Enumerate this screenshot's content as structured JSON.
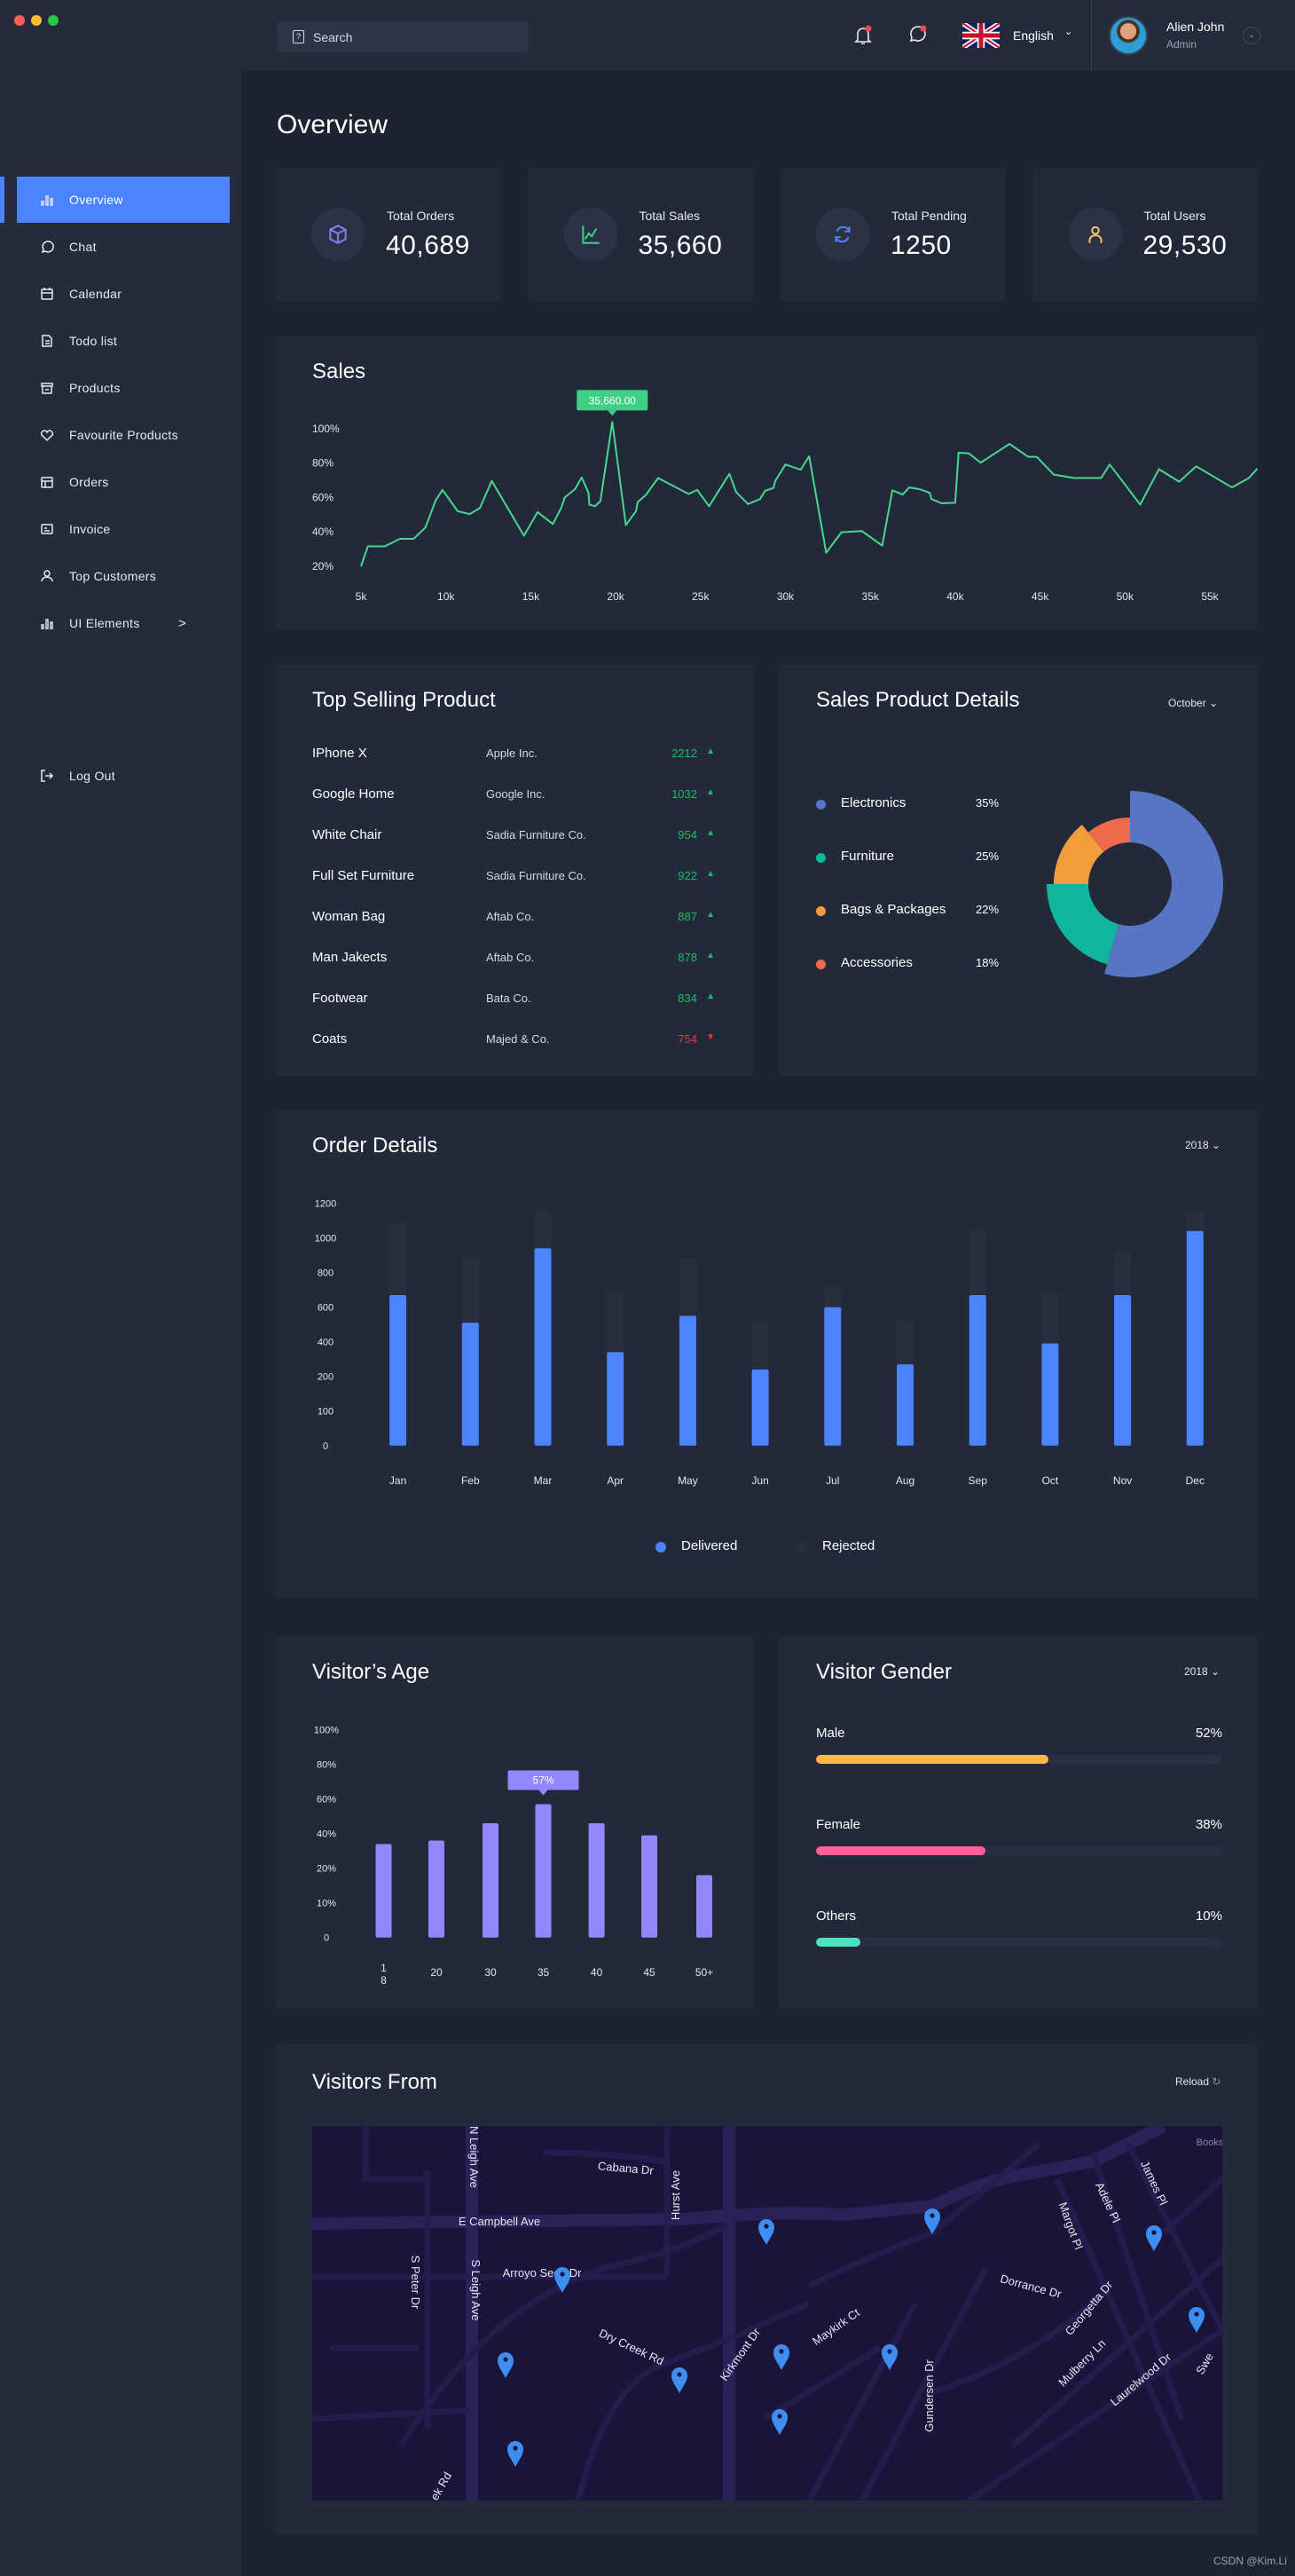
{
  "window_controls": {
    "colors": [
      "#ff5f57",
      "#febc2e",
      "#28c840"
    ]
  },
  "topbar": {
    "search_placeholder": "Search",
    "language": "English",
    "user": {
      "name": "Alien John",
      "role": "Admin"
    },
    "icons": [
      "bell-icon",
      "chat-icon",
      "uk-flag-icon",
      "chevron-down-icon"
    ]
  },
  "sidebar": {
    "items": [
      {
        "label": "Overview",
        "icon": "bar-chart",
        "active": true
      },
      {
        "label": "Chat",
        "icon": "chat"
      },
      {
        "label": "Calendar",
        "icon": "calendar"
      },
      {
        "label": "Todo list",
        "icon": "document"
      },
      {
        "label": "Products",
        "icon": "store"
      },
      {
        "label": "Favourite Products",
        "icon": "heart"
      },
      {
        "label": "Orders",
        "icon": "layout"
      },
      {
        "label": "Invoice",
        "icon": "invoice"
      },
      {
        "label": "Top Customers",
        "icon": "user"
      },
      {
        "label": "UI Elements",
        "icon": "bar-chart",
        "has_submenu": true
      }
    ],
    "logout": "Log Out",
    "submenu_chevron": ">"
  },
  "page_title": "Overview",
  "stats": [
    {
      "label": "Total Orders",
      "value": "40,689",
      "icon": "box",
      "color": "#8b7cf6"
    },
    {
      "label": "Total Sales",
      "value": "35,660",
      "icon": "trend",
      "color": "#3fd08f"
    },
    {
      "label": "Total Pending",
      "value": "1250",
      "icon": "refresh",
      "color": "#4c84ff"
    },
    {
      "label": "Total Users",
      "value": "29,530",
      "icon": "user",
      "color": "#f7c56b"
    }
  ],
  "sales": {
    "title": "Sales",
    "tooltip": "35,660.00"
  },
  "top_selling": {
    "title": "Top Selling Product",
    "rows": [
      {
        "name": "IPhone X",
        "company": "Apple Inc.",
        "value": "2212",
        "trend": "up"
      },
      {
        "name": "Google Home",
        "company": "Google Inc.",
        "value": "1032",
        "trend": "up"
      },
      {
        "name": "White Chair",
        "company": "Sadia Furniture Co.",
        "value": "954",
        "trend": "up"
      },
      {
        "name": "Full Set Furniture",
        "company": "Sadia Furniture Co.",
        "value": "922",
        "trend": "up"
      },
      {
        "name": "Woman Bag",
        "company": "Aftab Co.",
        "value": "887",
        "trend": "up"
      },
      {
        "name": "Man Jakects",
        "company": "Aftab Co.",
        "value": "878",
        "trend": "up"
      },
      {
        "name": "Footwear",
        "company": "Bata Co.",
        "value": "834",
        "trend": "up"
      },
      {
        "name": "Coats",
        "company": "Majed & Co.",
        "value": "754",
        "trend": "down"
      }
    ],
    "up_color": "#21b869",
    "down_color": "#e5354f"
  },
  "sales_product": {
    "title": "Sales Product Details",
    "filter": "October"
  },
  "order_details": {
    "title": "Order Details",
    "filter": "2018"
  },
  "visitor_age": {
    "title": "Visitor’s Age",
    "tooltip": "57%"
  },
  "visitor_gender": {
    "title": "Visitor Gender",
    "filter": "2018",
    "rows": [
      {
        "label": "Male",
        "value": "52%",
        "percent": 52,
        "color": "#ffb648"
      },
      {
        "label": "Female",
        "value": "38%",
        "percent": 38,
        "color": "#ff5e9a"
      },
      {
        "label": "Others",
        "value": "10%",
        "percent": 10,
        "color": "#4de1c1"
      }
    ]
  },
  "visitors_from": {
    "title": "Visitors From",
    "reload": "Reload",
    "map_labels": [
      "N Leigh Ave",
      "Cabana Dr",
      "Hurst Ave",
      "E Campbell Ave",
      "S Peter Dr",
      "S Leigh Ave",
      "Arroyo Seco Dr",
      "Dry Creek Rd",
      "Kirkmont Dr",
      "Maykirk Ct",
      "Gundersen Dr",
      "Dorrance Dr",
      "Margot Pl",
      "Adele Pl",
      "James Pl",
      "Georgetta Dr",
      "Mulberry Ln",
      "Laurelwood Dr",
      "Books",
      "ek Rd",
      "Swe"
    ],
    "pin_color": "#3d8ef0",
    "pin_count": 11
  },
  "watermark": "CSDN @Kim.Li",
  "chart_data": [
    {
      "type": "line",
      "title": "Sales",
      "x_unit": "k",
      "xlim": [
        5,
        57.8
      ],
      "ylim": [
        20,
        100
      ],
      "x_ticks": [
        "5k",
        "10k",
        "15k",
        "20k",
        "25k",
        "30k",
        "35k",
        "40k",
        "45k",
        "50k",
        "55k"
      ],
      "y_ticks": [
        "100%",
        "80%",
        "60%",
        "40%",
        "20%"
      ],
      "color": "#49d68f",
      "points": [
        [
          5,
          20
        ],
        [
          5.4,
          31.6
        ],
        [
          6.4,
          31.6
        ],
        [
          7.3,
          36
        ],
        [
          8.1,
          36
        ],
        [
          8.8,
          42.6
        ],
        [
          9.4,
          58.3
        ],
        [
          9.8,
          64.4
        ],
        [
          10.7,
          52
        ],
        [
          11.4,
          50.3
        ],
        [
          12,
          53.8
        ],
        [
          12.7,
          69.6
        ],
        [
          14.6,
          37.8
        ],
        [
          15.4,
          51.5
        ],
        [
          16.3,
          44.6
        ],
        [
          16.8,
          54.2
        ],
        [
          17,
          60
        ],
        [
          17.6,
          64.8
        ],
        [
          18,
          71.6
        ],
        [
          18.4,
          62.7
        ],
        [
          18.45,
          55.9
        ],
        [
          18.8,
          54.9
        ],
        [
          19.1,
          57.9
        ],
        [
          19.8,
          103.8
        ],
        [
          20.6,
          43.9
        ],
        [
          21.2,
          52.1
        ],
        [
          21.3,
          57.3
        ],
        [
          21.8,
          61.7
        ],
        [
          22.5,
          71.3
        ],
        [
          24.3,
          62
        ],
        [
          24.8,
          64.4
        ],
        [
          25.5,
          54.9
        ],
        [
          26.7,
          73.7
        ],
        [
          27.1,
          63.1
        ],
        [
          27.8,
          56.2
        ],
        [
          28.5,
          59
        ],
        [
          28.8,
          63.8
        ],
        [
          29.3,
          65.5
        ],
        [
          29.4,
          69.6
        ],
        [
          30,
          79.1
        ],
        [
          30.9,
          76.1
        ],
        [
          31.4,
          83.9
        ],
        [
          32.4,
          27.9
        ],
        [
          33.3,
          39.8
        ],
        [
          34.5,
          40.5
        ],
        [
          35.7,
          32
        ],
        [
          36.3,
          64.1
        ],
        [
          36.9,
          61.7
        ],
        [
          37.3,
          65.8
        ],
        [
          37.9,
          64.8
        ],
        [
          38.5,
          62.7
        ],
        [
          38.6,
          59
        ],
        [
          39.2,
          56.6
        ],
        [
          40,
          56.9
        ],
        [
          40.2,
          86
        ],
        [
          40.8,
          85.6
        ],
        [
          41.5,
          80.2
        ],
        [
          43.2,
          91.1
        ],
        [
          44.3,
          83.6
        ],
        [
          44.8,
          83.6
        ],
        [
          45.8,
          73.3
        ],
        [
          47,
          71.3
        ],
        [
          48.6,
          71.3
        ],
        [
          49.1,
          79.1
        ],
        [
          50.9,
          55.9
        ],
        [
          52,
          76.4
        ],
        [
          53.2,
          69.2
        ],
        [
          54.2,
          78.1
        ],
        [
          56.3,
          65.8
        ],
        [
          57.3,
          71.3
        ],
        [
          57.8,
          76.8
        ]
      ],
      "highlight": {
        "x": 19.8,
        "label": "35,660.00"
      }
    },
    {
      "type": "pie",
      "title": "Sales Product Details",
      "variant": "donut",
      "slices": [
        {
          "label": "Electronics",
          "value": 35,
          "display": "35%",
          "color": "#5676c4"
        },
        {
          "label": "Furniture",
          "value": 25,
          "display": "25%",
          "color": "#11b59b"
        },
        {
          "label": "Bags & Packages",
          "value": 22,
          "display": "22%",
          "color": "#f39c3c"
        },
        {
          "label": "Accessories",
          "value": 18,
          "display": "18%",
          "color": "#ee6a4b"
        }
      ]
    },
    {
      "type": "bar",
      "title": "Order Details",
      "stacked": true,
      "categories": [
        "Jan",
        "Feb",
        "Mar",
        "Apr",
        "May",
        "Jun",
        "Jul",
        "Aug",
        "Sep",
        "Oct",
        "Nov",
        "Dec"
      ],
      "y_ticks": [
        0,
        100,
        200,
        400,
        600,
        800,
        1000,
        1200
      ],
      "legend": "bottom",
      "series": [
        {
          "name": "Delivered",
          "color": "#4c84ff",
          "values": [
            670,
            510,
            940,
            340,
            550,
            240,
            600,
            270,
            670,
            390,
            670,
            1040
          ]
        },
        {
          "name": "Rejected",
          "color": "#272e3e",
          "values": [
            410,
            380,
            220,
            350,
            330,
            280,
            120,
            250,
            380,
            290,
            250,
            110
          ]
        }
      ]
    },
    {
      "type": "bar",
      "title": "Visitor’s Age",
      "categories": [
        "18",
        "20",
        "30",
        "35",
        "40",
        "45",
        "50+"
      ],
      "y_ticks": [
        "0",
        "10%",
        "20%",
        "40%",
        "60%",
        "80%",
        "100%"
      ],
      "y_tick_values": [
        0,
        10,
        20,
        40,
        60,
        80,
        100
      ],
      "color": "#9188ff",
      "values": [
        34,
        36,
        46,
        57,
        46,
        39,
        18
      ],
      "highlight": {
        "category": "35",
        "label": "57%"
      }
    }
  ]
}
